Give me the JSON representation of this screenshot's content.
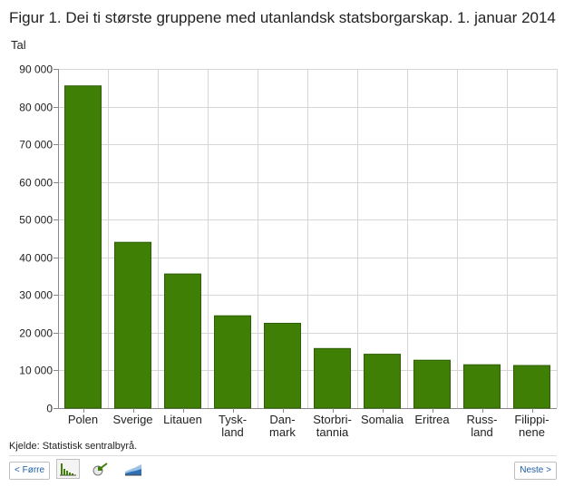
{
  "title": "Figur 1. Dei ti største gruppene med utanlandsk statsborgarskap. 1. januar 2014",
  "unit": "Tal",
  "source": "Kjelde: Statistisk sentralbyrå.",
  "nav": {
    "prev": "< Førre",
    "next": "Neste >"
  },
  "tools": [
    "bar-chart-icon",
    "pie-chart-icon",
    "area-chart-icon"
  ],
  "colors": {
    "bar": "#3f7f06",
    "bar_stroke": "#2e5e03",
    "grid": "#d6d6d6",
    "axis": "#888888",
    "link": "#1f5fa8"
  },
  "chart_data": {
    "type": "bar",
    "title": "Figur 1. Dei ti største gruppene med utanlandsk statsborgarskap. 1. januar 2014",
    "ylabel": "Tal",
    "xlabel": "",
    "ylim": [
      0,
      90000
    ],
    "yticks": [
      0,
      10000,
      20000,
      30000,
      40000,
      50000,
      60000,
      70000,
      80000,
      90000
    ],
    "ytick_labels": [
      "0",
      "10 000",
      "20 000",
      "30 000",
      "40 000",
      "50 000",
      "60 000",
      "70 000",
      "80 000",
      "90 000"
    ],
    "categories": [
      [
        "Polen"
      ],
      [
        "Sverige"
      ],
      [
        "Litauen"
      ],
      [
        "Tysk-",
        "land"
      ],
      [
        "Dan-",
        "mark"
      ],
      [
        "Storbri-",
        "tannia"
      ],
      [
        "Somalia"
      ],
      [
        "Eritrea"
      ],
      [
        "Russ-",
        "land"
      ],
      [
        "Filippi-",
        "nene"
      ]
    ],
    "values": [
      85500,
      44000,
      35600,
      24500,
      22500,
      15800,
      14300,
      12700,
      11500,
      11300
    ],
    "grid": true,
    "legend": "none"
  }
}
